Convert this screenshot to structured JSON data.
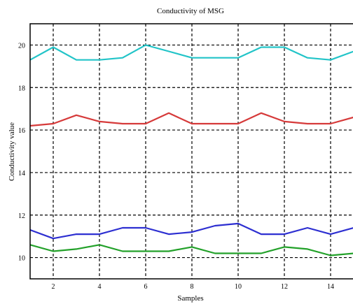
{
  "chart_data": {
    "type": "line",
    "title": "Conductivity of MSG",
    "xlabel": "Samples",
    "ylabel": "Conductivity value",
    "xlim": [
      1,
      15
    ],
    "ylim": [
      9,
      21
    ],
    "xticks": [
      2,
      4,
      6,
      8,
      10,
      12,
      14
    ],
    "yticks": [
      10,
      12,
      14,
      16,
      18,
      20
    ],
    "grid": true,
    "x": [
      1,
      2,
      3,
      4,
      5,
      6,
      7,
      8,
      9,
      10,
      11,
      12,
      13,
      14,
      15
    ],
    "series": [
      {
        "color": "#22c4c8",
        "values": [
          19.3,
          19.9,
          19.3,
          19.3,
          19.4,
          20.0,
          19.7,
          19.4,
          19.4,
          19.4,
          19.9,
          19.9,
          19.4,
          19.3,
          19.7
        ]
      },
      {
        "color": "#d63a3a",
        "values": [
          16.2,
          16.3,
          16.7,
          16.4,
          16.3,
          16.3,
          16.8,
          16.3,
          16.3,
          16.3,
          16.8,
          16.4,
          16.3,
          16.3,
          16.6
        ]
      },
      {
        "color": "#2d2fd1",
        "values": [
          11.3,
          10.9,
          11.1,
          11.1,
          11.4,
          11.4,
          11.1,
          11.2,
          11.5,
          11.6,
          11.1,
          11.1,
          11.4,
          11.1,
          11.4
        ]
      },
      {
        "color": "#23a12a",
        "values": [
          10.6,
          10.3,
          10.4,
          10.6,
          10.3,
          10.3,
          10.3,
          10.5,
          10.2,
          10.2,
          10.2,
          10.5,
          10.4,
          10.1,
          10.2
        ]
      }
    ]
  }
}
